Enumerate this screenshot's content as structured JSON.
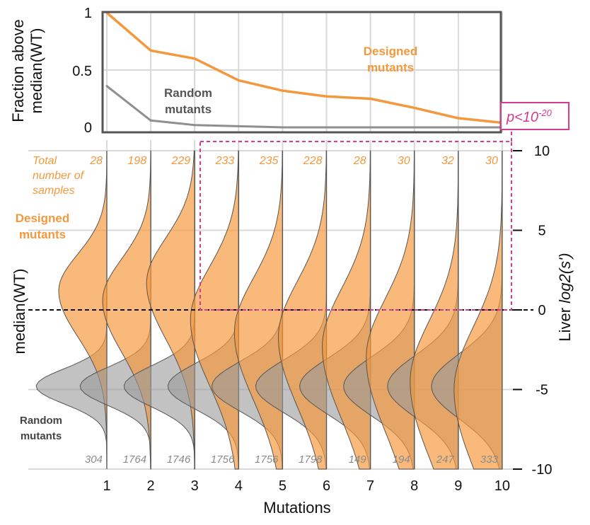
{
  "chart_data": [
    {
      "type": "line",
      "name": "fraction-above-median",
      "ylabel": "Fraction above median(WT)",
      "ylim": [
        0,
        1
      ],
      "yticks": [
        "0",
        "0.5",
        "1"
      ],
      "x": [
        1,
        2,
        3,
        4,
        5,
        6,
        7,
        8,
        9,
        10
      ],
      "series": [
        {
          "name": "Designed mutants",
          "label_lines": [
            "Designed",
            "mutants"
          ],
          "color": "#f4983d",
          "values": [
            1.0,
            0.67,
            0.6,
            0.41,
            0.32,
            0.27,
            0.25,
            0.17,
            0.08,
            0.04
          ]
        },
        {
          "name": "Random mutants",
          "label_lines": [
            "Random",
            "mutants"
          ],
          "color": "#8f8f8f",
          "values": [
            0.36,
            0.06,
            0.02,
            0.01,
            0.0,
            0.0,
            0.0,
            0.0,
            0.0,
            0.0
          ]
        }
      ],
      "annotation": {
        "base": "p<10",
        "exponent": "-20",
        "color": "#d63b8f"
      }
    },
    {
      "type": "violin",
      "name": "liver-log2-distributions",
      "xlabel": "Mutations",
      "ylabel_prefix": "Liver ",
      "ylabel_italic": "log2(s')",
      "ylim": [
        -10,
        10
      ],
      "yticks": [
        "10",
        "5",
        "0",
        "-5",
        "-10"
      ],
      "xticks": [
        "1",
        "2",
        "3",
        "4",
        "5",
        "6",
        "7",
        "8",
        "9",
        "10"
      ],
      "reference_line": {
        "label": "median(WT)",
        "value": 0
      },
      "designed": {
        "label_lines": [
          "Designed",
          "mutants"
        ],
        "samples_label_lines": [
          "Total",
          "number of",
          "samples"
        ],
        "counts": [
          "28",
          "198",
          "229",
          "233",
          "235",
          "228",
          "28",
          "30",
          "32",
          "30"
        ],
        "medians": [
          1.2,
          0.6,
          1.7,
          -0.6,
          -1.4,
          -1.7,
          -2.3,
          -3.0,
          -4.5,
          -5.0
        ],
        "sds": [
          2.3,
          2.6,
          2.8,
          3.3,
          3.4,
          3.5,
          3.6,
          3.7,
          3.8,
          3.9
        ],
        "color": "#f4983d"
      },
      "random": {
        "label_lines": [
          "Random",
          "mutants"
        ],
        "counts": [
          "304",
          "1764",
          "1746",
          "1756",
          "1756",
          "1798",
          "149",
          "194",
          "247",
          "333"
        ],
        "medians": [
          -4.8,
          -4.8,
          -4.8,
          -4.8,
          -4.8,
          -4.8,
          -4.8,
          -4.8,
          -4.8,
          -4.8
        ],
        "sds": [
          1.1,
          1.2,
          1.3,
          1.45,
          1.55,
          1.65,
          1.75,
          1.85,
          1.95,
          2.05
        ],
        "color": "#9a9a9a"
      }
    }
  ]
}
